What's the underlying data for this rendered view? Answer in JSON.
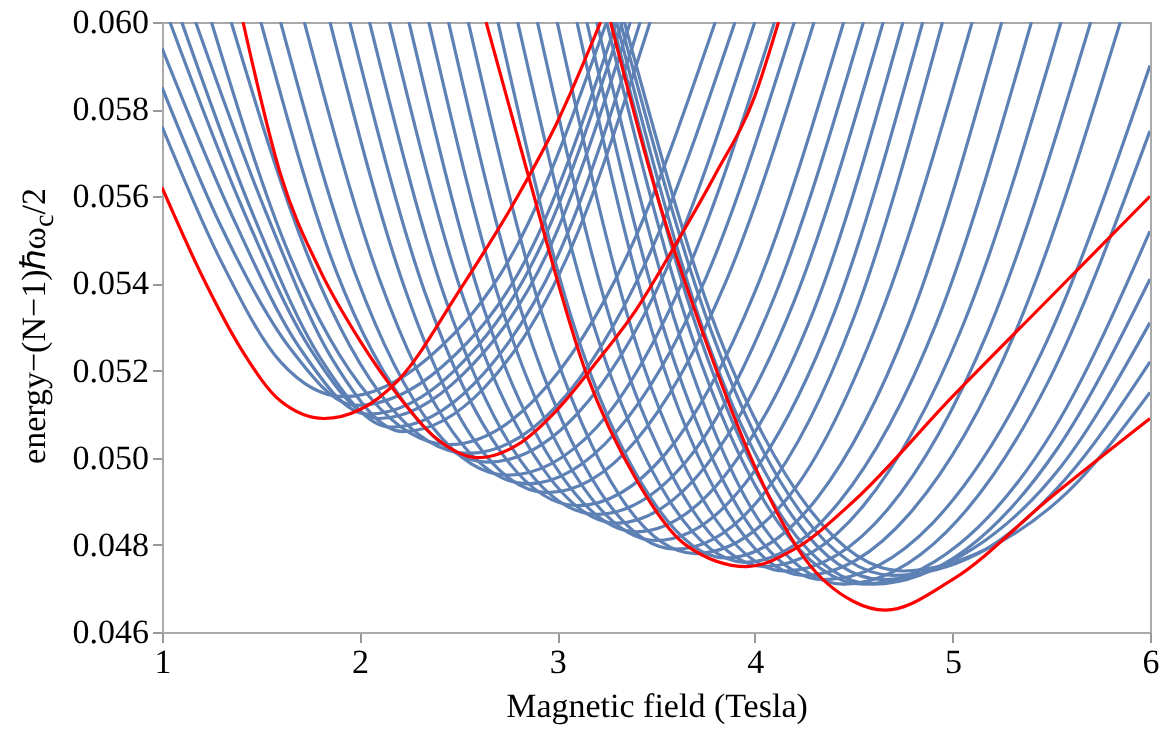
{
  "chart_data": {
    "type": "line",
    "xlabel": "Magnetic field (Tesla)",
    "ylabel": "energy−(N−1)ℏω$_{c}$/2",
    "xlim": [
      1,
      6
    ],
    "xticks": [
      1,
      2,
      3,
      4,
      5,
      6
    ],
    "ylim": [
      0.046,
      0.06
    ],
    "yticks": [
      {
        "value": 0.046,
        "label": "0.046"
      },
      {
        "value": 0.048,
        "label": "0.048"
      },
      {
        "value": 0.05,
        "label": "0.050"
      },
      {
        "value": 0.052,
        "label": "0.052"
      },
      {
        "value": 0.054,
        "label": "0.054"
      },
      {
        "value": 0.056,
        "label": "0.056"
      },
      {
        "value": 0.058,
        "label": "0.058"
      },
      {
        "value": 0.06,
        "label": "0.060"
      }
    ],
    "grid": false,
    "series": [
      {
        "color": "#5e81b5",
        "x": [
          1,
          1.3,
          1.6,
          1.92,
          2.35,
          2.8,
          3.25
        ],
        "values": [
          0.0576,
          0.0545,
          0.0522,
          0.0514,
          0.0523,
          0.0549,
          0.06
        ]
      },
      {
        "color": "#5e81b5",
        "x": [
          1,
          1.3,
          1.65,
          1.98,
          2.42,
          2.87,
          3.3
        ],
        "values": [
          0.0585,
          0.0553,
          0.0525,
          0.0512,
          0.0521,
          0.0548,
          0.06
        ]
      },
      {
        "color": "#5e81b5",
        "x": [
          1,
          1.35,
          1.7,
          2.04,
          2.48,
          2.9,
          3.33
        ],
        "values": [
          0.0594,
          0.0556,
          0.0525,
          0.051,
          0.052,
          0.0547,
          0.06
        ]
      },
      {
        "color": "#5e81b5",
        "x": [
          1.04,
          1.4,
          1.75,
          2.1,
          2.52,
          2.95,
          3.37
        ],
        "values": [
          0.06,
          0.0558,
          0.0525,
          0.0509,
          0.0519,
          0.0547,
          0.06
        ]
      },
      {
        "color": "#5e81b5",
        "x": [
          1.1,
          1.45,
          1.8,
          2.16,
          2.58,
          3,
          3.42
        ],
        "values": [
          0.06,
          0.0557,
          0.0523,
          0.0507,
          0.0517,
          0.0546,
          0.06
        ]
      },
      {
        "color": "#5e81b5",
        "x": [
          1.17,
          1.52,
          1.87,
          2.22,
          2.63,
          3.05,
          3.47
        ],
        "values": [
          0.06,
          0.0557,
          0.0522,
          0.0506,
          0.0516,
          0.0546,
          0.06
        ]
      },
      {
        "color": "#5e81b5",
        "x": [
          1.25,
          1.65,
          2.05,
          2.45,
          2.9,
          3.35,
          3.8
        ],
        "values": [
          0.06,
          0.0546,
          0.0514,
          0.0503,
          0.0514,
          0.0546,
          0.06
        ]
      },
      {
        "color": "#5e81b5",
        "x": [
          1.35,
          1.75,
          2.15,
          2.55,
          3,
          3.45,
          3.9
        ],
        "values": [
          0.06,
          0.0545,
          0.0512,
          0.0501,
          0.0512,
          0.0545,
          0.06
        ]
      },
      {
        "color": "#5e81b5",
        "x": [
          1.5,
          1.88,
          2.27,
          2.65,
          3.1,
          3.55,
          4
        ],
        "values": [
          0.06,
          0.0543,
          0.051,
          0.0499,
          0.051,
          0.0543,
          0.06
        ]
      },
      {
        "color": "#5e81b5",
        "x": [
          1.6,
          1.98,
          2.37,
          2.75,
          3.2,
          3.65,
          4.1
        ],
        "values": [
          0.06,
          0.0542,
          0.0507,
          0.0496,
          0.0507,
          0.0542,
          0.06
        ]
      },
      {
        "color": "#5e81b5",
        "x": [
          1.72,
          2.1,
          2.47,
          2.85,
          3.3,
          3.75,
          4.2
        ],
        "values": [
          0.06,
          0.0541,
          0.0506,
          0.0494,
          0.0506,
          0.0541,
          0.06
        ]
      },
      {
        "color": "#5e81b5",
        "x": [
          1.85,
          2.22,
          2.58,
          2.95,
          3.4,
          3.85,
          4.3
        ],
        "values": [
          0.06,
          0.054,
          0.0504,
          0.0492,
          0.0504,
          0.054,
          0.06
        ]
      },
      {
        "color": "#5e81b5",
        "x": [
          1.95,
          2.33,
          2.72,
          3.1,
          3.55,
          4,
          4.45
        ],
        "values": [
          0.06,
          0.0538,
          0.0501,
          0.0489,
          0.0501,
          0.0538,
          0.06
        ]
      },
      {
        "color": "#5e81b5",
        "x": [
          2.05,
          2.43,
          2.82,
          3.2,
          3.65,
          4.1,
          4.55
        ],
        "values": [
          0.06,
          0.0537,
          0.0499,
          0.0487,
          0.0499,
          0.0537,
          0.06
        ]
      },
      {
        "color": "#5e81b5",
        "x": [
          2.15,
          2.53,
          2.92,
          3.3,
          3.75,
          4.2,
          4.65
        ],
        "values": [
          0.06,
          0.0536,
          0.0498,
          0.0485,
          0.0498,
          0.0536,
          0.06
        ]
      },
      {
        "color": "#5e81b5",
        "x": [
          2.25,
          2.63,
          3.02,
          3.4,
          3.85,
          4.3,
          4.75
        ],
        "values": [
          0.06,
          0.0534,
          0.0496,
          0.0483,
          0.0496,
          0.0534,
          0.06
        ]
      },
      {
        "color": "#5e81b5",
        "x": [
          2.35,
          2.73,
          3.12,
          3.5,
          3.95,
          4.4,
          4.85
        ],
        "values": [
          0.06,
          0.0533,
          0.0494,
          0.0481,
          0.0494,
          0.0533,
          0.06
        ]
      },
      {
        "color": "#5e81b5",
        "x": [
          2.45,
          2.83,
          3.22,
          3.6,
          4.05,
          4.5,
          4.95
        ],
        "values": [
          0.06,
          0.0532,
          0.0492,
          0.0479,
          0.0492,
          0.0532,
          0.06
        ]
      },
      {
        "color": "#5e81b5",
        "x": [
          2.55,
          2.93,
          3.32,
          3.7,
          4.17,
          4.63,
          5.1
        ],
        "values": [
          0.06,
          0.0532,
          0.0491,
          0.0478,
          0.0491,
          0.0532,
          0.06
        ]
      },
      {
        "color": "#5e81b5",
        "x": [
          2.7,
          3.08,
          3.47,
          3.85,
          4.32,
          4.78,
          5.25
        ],
        "values": [
          0.06,
          0.0531,
          0.0491,
          0.0477,
          0.0491,
          0.0531,
          0.06
        ]
      },
      {
        "color": "#5e81b5",
        "x": [
          2.8,
          3.18,
          3.57,
          3.95,
          4.43,
          4.92,
          5.4
        ],
        "values": [
          0.06,
          0.0531,
          0.049,
          0.0476,
          0.049,
          0.0531,
          0.06
        ]
      },
      {
        "color": "#5e81b5",
        "x": [
          2.9,
          3.28,
          3.67,
          4.05,
          4.55,
          5.05,
          5.55
        ],
        "values": [
          0.06,
          0.053,
          0.0489,
          0.0475,
          0.0489,
          0.053,
          0.06
        ]
      },
      {
        "color": "#5e81b5",
        "x": [
          3,
          3.38,
          3.77,
          4.15,
          4.67,
          5.18,
          5.7
        ],
        "values": [
          0.06,
          0.0529,
          0.0488,
          0.0474,
          0.0488,
          0.0529,
          0.06
        ]
      },
      {
        "color": "#5e81b5",
        "x": [
          3.1,
          3.48,
          3.87,
          4.25,
          4.78,
          5.32,
          5.85
        ],
        "values": [
          0.06,
          0.0529,
          0.0487,
          0.0473,
          0.0487,
          0.0529,
          0.06
        ]
      },
      {
        "color": "#5e81b5",
        "x": [
          3.15,
          3.55,
          3.95,
          4.35,
          4.9,
          5.45,
          6
        ],
        "values": [
          0.06,
          0.0528,
          0.0486,
          0.0472,
          0.0485,
          0.0524,
          0.059
        ]
      },
      {
        "color": "#5e81b5",
        "x": [
          3.2,
          3.62,
          4.03,
          4.45,
          4.97,
          5.48,
          6
        ],
        "values": [
          0.06,
          0.0528,
          0.0485,
          0.0471,
          0.0483,
          0.0517,
          0.0575
        ]
      },
      {
        "color": "#5e81b5",
        "x": [
          3.25,
          3.68,
          4.12,
          4.55,
          5.03,
          5.52,
          6
        ],
        "values": [
          0.06,
          0.0528,
          0.0485,
          0.0471,
          0.048,
          0.0507,
          0.0552
        ]
      },
      {
        "color": "#5e81b5",
        "x": [
          3.28,
          3.72,
          4.16,
          4.6,
          5.07,
          5.53,
          6
        ],
        "values": [
          0.06,
          0.0528,
          0.0485,
          0.0471,
          0.0479,
          0.0502,
          0.0541
        ]
      },
      {
        "color": "#5e81b5",
        "x": [
          3.3,
          3.75,
          4.2,
          4.65,
          5.1,
          5.55,
          6
        ],
        "values": [
          0.06,
          0.0528,
          0.0486,
          0.0472,
          0.0479,
          0.0498,
          0.0531
        ]
      },
      {
        "color": "#5e81b5",
        "x": [
          3.32,
          3.78,
          4.24,
          4.7,
          5.13,
          5.57,
          6
        ],
        "values": [
          0.06,
          0.0529,
          0.0487,
          0.0473,
          0.0478,
          0.0495,
          0.0522
        ]
      },
      {
        "color": "#5e81b5",
        "x": [
          3.34,
          3.81,
          4.28,
          4.75,
          5.17,
          5.58,
          6
        ],
        "values": [
          0.06,
          0.0529,
          0.0488,
          0.0474,
          0.0479,
          0.0492,
          0.0515
        ]
      },
      {
        "color": "#ff0000",
        "x": [
          1,
          1.2,
          1.4,
          1.6,
          1.82,
          2,
          2.2,
          2.5,
          2.8,
          3,
          3.22
        ],
        "values": [
          0.0562,
          0.0542,
          0.0525,
          0.0513,
          0.0509,
          0.0511,
          0.0518,
          0.0538,
          0.056,
          0.0577,
          0.06
        ]
      },
      {
        "color": "#ff0000",
        "x": [
          1.41,
          1.6,
          1.8,
          2,
          2.2,
          2.4,
          2.6,
          2.8,
          3,
          3.2,
          3.4,
          3.6,
          3.8,
          4,
          4.12
        ],
        "values": [
          0.06,
          0.0565,
          0.0543,
          0.0527,
          0.0514,
          0.0504,
          0.05,
          0.0503,
          0.0511,
          0.0522,
          0.0534,
          0.0549,
          0.0565,
          0.0583,
          0.06
        ]
      },
      {
        "color": "#ff0000",
        "x": [
          2.64,
          2.84,
          3.15,
          3.4,
          3.65,
          3.96,
          4.2,
          4.5,
          5,
          5.5,
          6
        ],
        "values": [
          0.06,
          0.0567,
          0.0519,
          0.0495,
          0.048,
          0.0475,
          0.0479,
          0.049,
          0.0514,
          0.0537,
          0.056
        ]
      },
      {
        "color": "#ff0000",
        "x": [
          3.27,
          3.5,
          3.75,
          4,
          4.25,
          4.5,
          4.66,
          5,
          5.5,
          6
        ],
        "values": [
          0.06,
          0.0561,
          0.0527,
          0.0498,
          0.0477,
          0.0467,
          0.0465,
          0.0472,
          0.0491,
          0.0509
        ]
      }
    ]
  }
}
